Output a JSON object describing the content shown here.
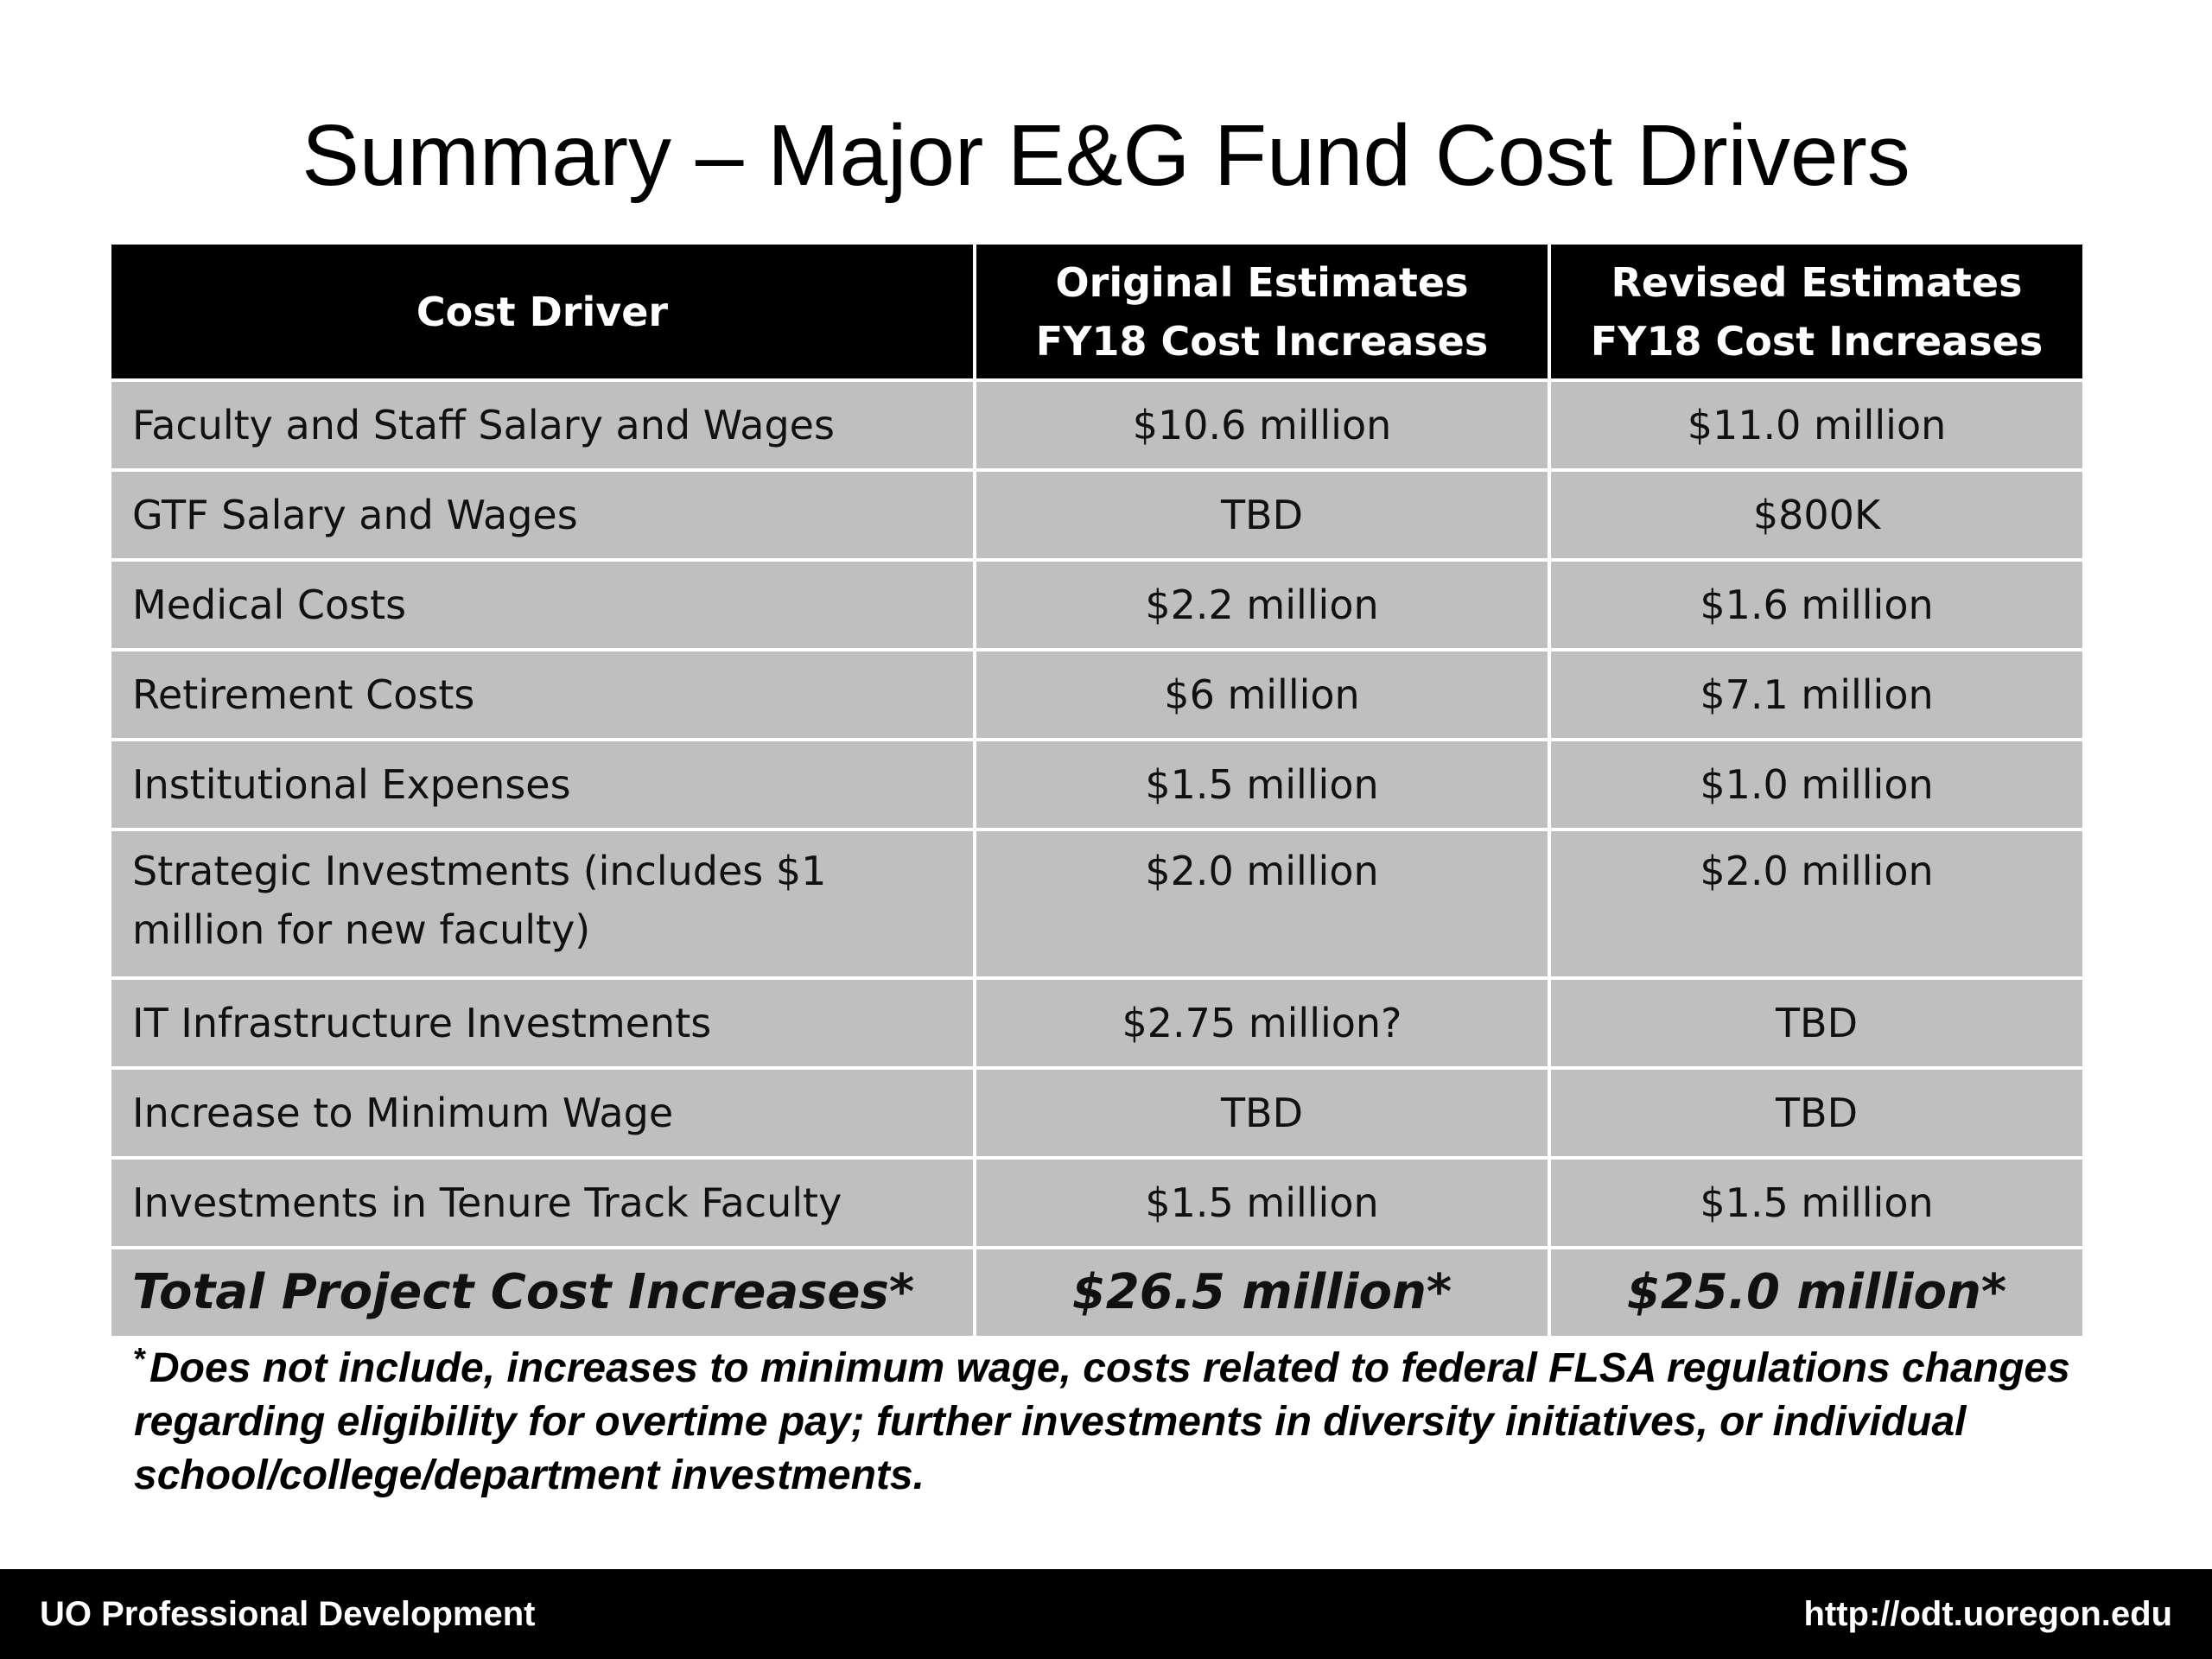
{
  "slide": {
    "title": "Summary – Major E&G Fund Cost Drivers"
  },
  "table": {
    "headers": {
      "col1": "Cost Driver",
      "col2_line1": "Original Estimates",
      "col2_line2": "FY18 Cost Increases",
      "col3_line1": "Revised Estimates",
      "col3_line2": "FY18 Cost Increases"
    },
    "rows": [
      {
        "driver": "Faculty and Staff Salary and Wages",
        "original": "$10.6 million",
        "revised": "$11.0 million"
      },
      {
        "driver": "GTF Salary and Wages",
        "original": "TBD",
        "revised": "$800K"
      },
      {
        "driver": "Medical Costs",
        "original": "$2.2 million",
        "revised": "$1.6 million"
      },
      {
        "driver": "Retirement Costs",
        "original": "$6 million",
        "revised": "$7.1 million"
      },
      {
        "driver": "Institutional Expenses",
        "original": "$1.5 million",
        "revised": "$1.0 million"
      },
      {
        "driver": "Strategic Investments (includes $1 million for new faculty)",
        "original": "$2.0 million",
        "revised": "$2.0 million"
      },
      {
        "driver": "IT Infrastructure Investments",
        "original": "$2.75 million?",
        "revised": "TBD"
      },
      {
        "driver": "Increase to Minimum Wage",
        "original": "TBD",
        "revised": "TBD"
      },
      {
        "driver": "Investments in Tenure Track Faculty",
        "original": "$1.5 million",
        "revised": "$1.5 million"
      }
    ],
    "total": {
      "driver": "Total Project Cost Increases*",
      "original": "$26.5 million*",
      "revised": "$25.0 million*"
    }
  },
  "footnote": {
    "marker": "*",
    "text": "Does not include, increases to minimum wage, costs related to federal FLSA regulations changes regarding eligibility for overtime pay; further investments in diversity initiatives, or individual school/college/department investments."
  },
  "footer": {
    "left": "UO Professional Development",
    "right": "http://odt.uoregon.edu"
  }
}
